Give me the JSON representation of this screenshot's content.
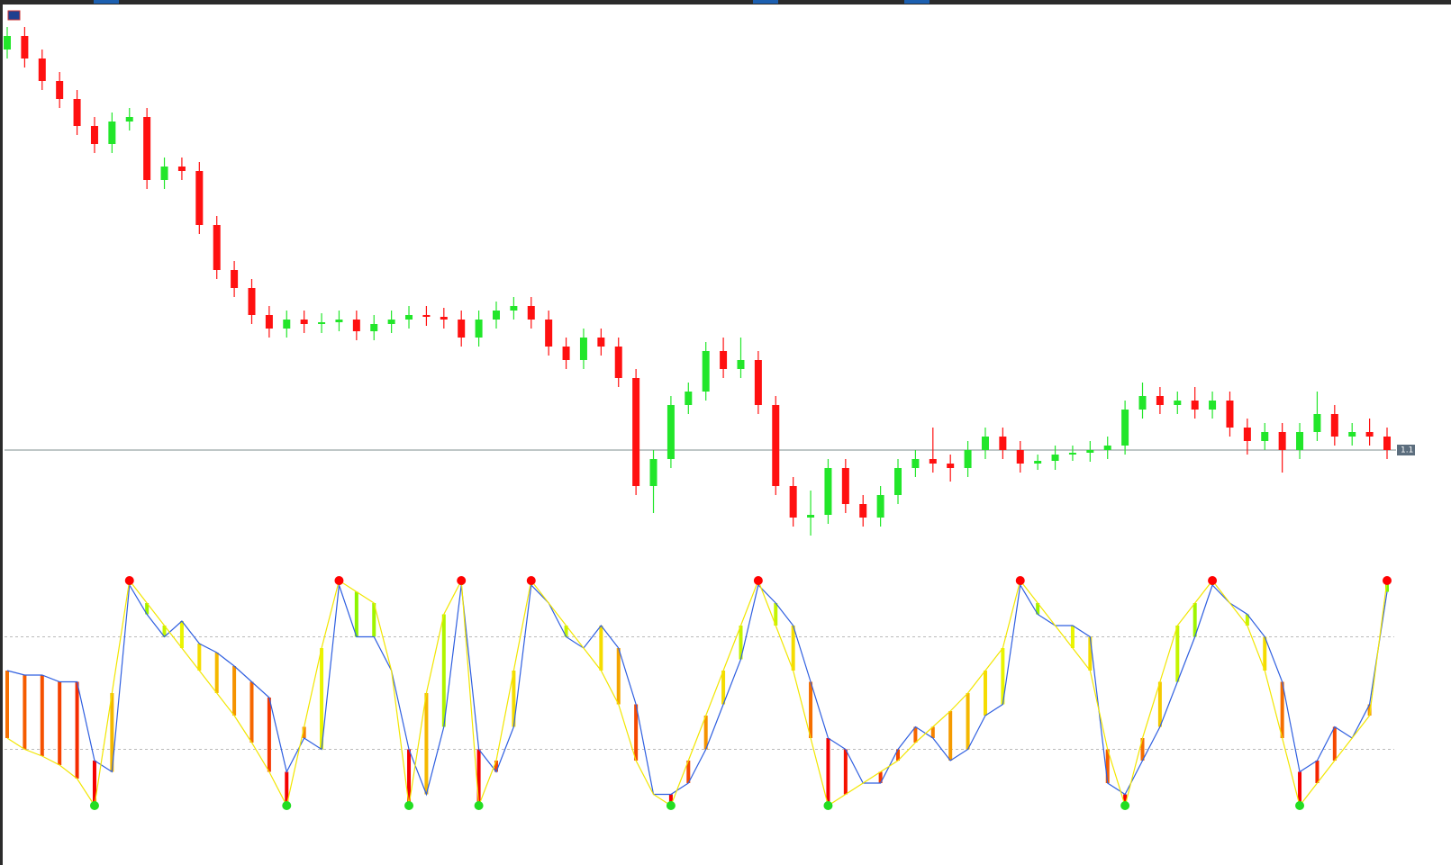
{
  "chart_data": [
    {
      "type": "candlestick",
      "up_color": "#22e62a",
      "down_color": "#ff1010",
      "ylim": [
        1.089,
        1.147
      ],
      "hlines": [
        1.1
      ],
      "open": [
        1.1445,
        1.146,
        1.1435,
        1.141,
        1.139,
        1.136,
        1.134,
        1.1365,
        1.137,
        1.13,
        1.1315,
        1.131,
        1.125,
        1.12,
        1.118,
        1.115,
        1.1135,
        1.1145,
        1.114,
        1.1142,
        1.1145,
        1.1132,
        1.114,
        1.1145,
        1.115,
        1.1148,
        1.1145,
        1.1125,
        1.1145,
        1.1155,
        1.116,
        1.1145,
        1.1115,
        1.11,
        1.1125,
        1.1115,
        1.108,
        1.096,
        1.099,
        1.105,
        1.1065,
        1.111,
        1.109,
        1.11,
        1.105,
        1.096,
        1.0925,
        1.0928,
        1.098,
        1.094,
        1.0925,
        1.095,
        1.098,
        1.099,
        1.0985,
        1.098,
        1.1,
        1.1015,
        1.1,
        1.0985,
        1.0988,
        1.0995,
        1.0997,
        1.1,
        1.1005,
        1.1045,
        1.106,
        1.105,
        1.1055,
        1.1045,
        1.1055,
        1.1025,
        1.101,
        1.102,
        1.1,
        1.102,
        1.104,
        1.1015,
        1.102,
        1.1015
      ],
      "high": [
        1.147,
        1.147,
        1.1445,
        1.142,
        1.14,
        1.137,
        1.1375,
        1.138,
        1.138,
        1.1325,
        1.1325,
        1.132,
        1.126,
        1.121,
        1.119,
        1.116,
        1.1155,
        1.1155,
        1.1152,
        1.1155,
        1.1155,
        1.115,
        1.1155,
        1.116,
        1.116,
        1.1158,
        1.1155,
        1.1155,
        1.1165,
        1.117,
        1.117,
        1.1155,
        1.1125,
        1.1135,
        1.1135,
        1.1125,
        1.109,
        1.1,
        1.106,
        1.1075,
        1.112,
        1.1125,
        1.1125,
        1.111,
        1.106,
        1.097,
        1.0955,
        1.099,
        1.099,
        1.095,
        1.096,
        1.099,
        1.1,
        1.1025,
        1.0995,
        1.101,
        1.1025,
        1.1025,
        1.101,
        1.0995,
        1.1005,
        1.1005,
        1.101,
        1.1015,
        1.1055,
        1.1075,
        1.107,
        1.1065,
        1.107,
        1.1065,
        1.1065,
        1.1035,
        1.103,
        1.103,
        1.103,
        1.1065,
        1.105,
        1.103,
        1.1035,
        1.1025
      ],
      "low": [
        1.1435,
        1.1425,
        1.14,
        1.138,
        1.135,
        1.133,
        1.133,
        1.1355,
        1.129,
        1.129,
        1.13,
        1.124,
        1.119,
        1.117,
        1.114,
        1.1125,
        1.1125,
        1.113,
        1.113,
        1.1132,
        1.1122,
        1.1122,
        1.113,
        1.1135,
        1.1138,
        1.1135,
        1.1115,
        1.1115,
        1.1135,
        1.1145,
        1.1135,
        1.1105,
        1.109,
        1.109,
        1.1105,
        1.107,
        1.095,
        1.093,
        1.098,
        1.104,
        1.1055,
        1.108,
        1.108,
        1.104,
        1.095,
        1.0915,
        1.0905,
        1.0918,
        1.093,
        1.0915,
        1.0915,
        1.094,
        1.097,
        1.0975,
        1.0965,
        1.097,
        1.099,
        1.099,
        1.0975,
        1.0978,
        1.0978,
        1.0988,
        1.0987,
        1.099,
        1.0995,
        1.1035,
        1.104,
        1.104,
        1.1035,
        1.1035,
        1.1015,
        1.0995,
        1.1,
        1.0975,
        1.099,
        1.101,
        1.1005,
        1.1005,
        1.1005,
        1.099
      ],
      "close": [
        1.146,
        1.1435,
        1.141,
        1.139,
        1.136,
        1.134,
        1.1365,
        1.137,
        1.13,
        1.1315,
        1.131,
        1.125,
        1.12,
        1.118,
        1.115,
        1.1135,
        1.1145,
        1.114,
        1.1142,
        1.1145,
        1.1132,
        1.114,
        1.1145,
        1.115,
        1.1148,
        1.1145,
        1.1125,
        1.1145,
        1.1155,
        1.116,
        1.1145,
        1.1115,
        1.11,
        1.1125,
        1.1115,
        1.108,
        1.096,
        1.099,
        1.105,
        1.1065,
        1.111,
        1.109,
        1.11,
        1.105,
        1.096,
        1.0925,
        1.0928,
        1.098,
        1.094,
        1.0925,
        1.095,
        1.098,
        1.099,
        1.0985,
        1.098,
        1.1,
        1.1015,
        1.1,
        1.0985,
        1.0988,
        1.0995,
        1.0997,
        1.1,
        1.1005,
        1.1045,
        1.106,
        1.105,
        1.1055,
        1.1045,
        1.1055,
        1.1025,
        1.101,
        1.102,
        1.1,
        1.102,
        1.104,
        1.1015,
        1.102,
        1.1015,
        1.1
      ]
    },
    {
      "type": "oscillator",
      "ylim": [
        0,
        100
      ],
      "hlines": [
        75,
        25
      ],
      "peak_color": "#ff0000",
      "trough_color": "#22dd22",
      "series": [
        {
          "color": "#2f5fe0",
          "values": [
            60,
            58,
            58,
            55,
            55,
            20,
            15,
            98,
            85,
            75,
            82,
            72,
            68,
            62,
            55,
            48,
            15,
            30,
            25,
            98,
            75,
            75,
            60,
            25,
            5,
            35,
            98,
            25,
            15,
            35,
            98,
            90,
            75,
            70,
            80,
            70,
            45,
            5,
            5,
            10,
            25,
            45,
            65,
            98,
            90,
            80,
            55,
            30,
            25,
            10,
            10,
            25,
            35,
            30,
            20,
            25,
            40,
            45,
            98,
            85,
            80,
            80,
            75,
            10,
            5,
            20,
            35,
            55,
            75,
            98,
            90,
            85,
            75,
            55,
            15,
            20,
            35,
            30,
            45,
            95
          ]
        },
        {
          "color": "#f2e600",
          "values": [
            30,
            25,
            22,
            18,
            12,
            0,
            50,
            100,
            90,
            80,
            70,
            60,
            50,
            40,
            28,
            15,
            0,
            35,
            70,
            100,
            95,
            90,
            60,
            0,
            50,
            85,
            100,
            0,
            20,
            60,
            100,
            90,
            80,
            70,
            60,
            45,
            20,
            5,
            0,
            20,
            40,
            60,
            80,
            100,
            80,
            60,
            30,
            0,
            5,
            10,
            15,
            20,
            28,
            35,
            42,
            50,
            60,
            70,
            100,
            90,
            80,
            70,
            60,
            25,
            0,
            30,
            55,
            80,
            90,
            100,
            90,
            80,
            60,
            30,
            0,
            10,
            20,
            30,
            40,
            100
          ]
        }
      ]
    }
  ]
}
